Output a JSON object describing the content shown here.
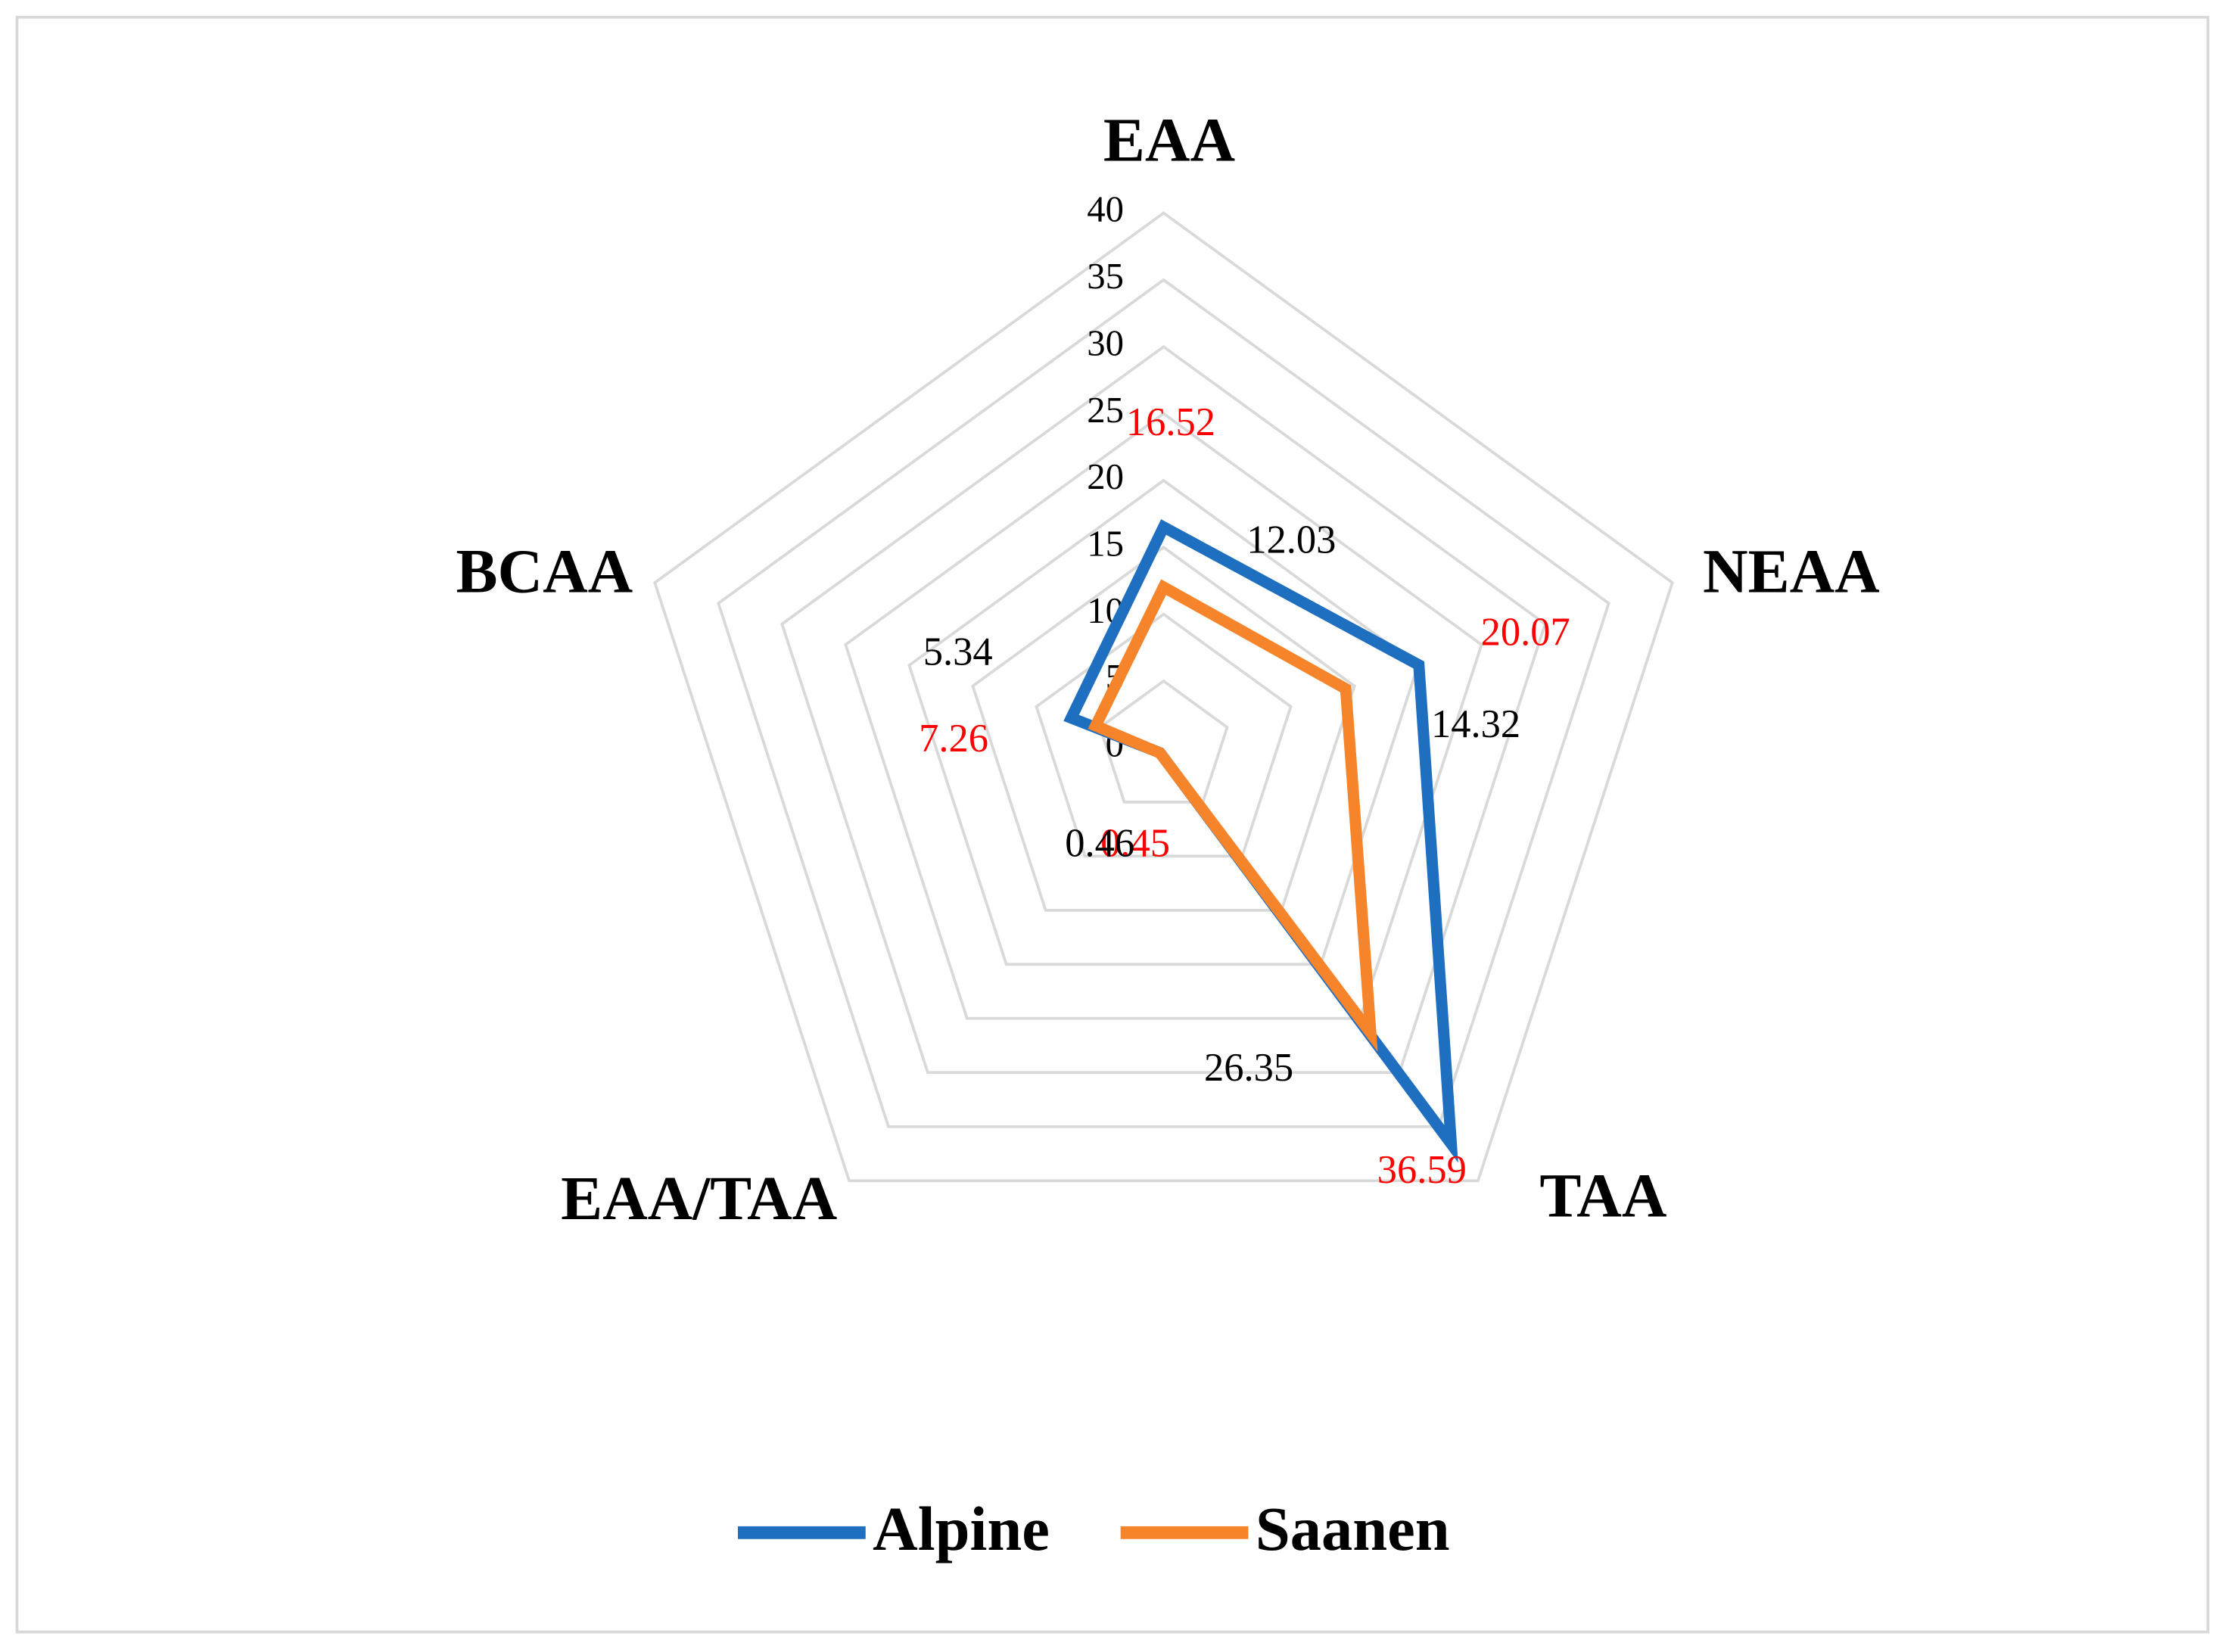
{
  "chart_data": {
    "type": "radar",
    "categories": [
      "EAA",
      "NEAA",
      "TAA",
      "EAA/TAA",
      "BCAA"
    ],
    "series": [
      {
        "name": "Alpine",
        "color": "#1f6fc1",
        "label_color": "#ff0000",
        "values": [
          16.52,
          20.07,
          36.59,
          0.45,
          7.26
        ]
      },
      {
        "name": "Saanen",
        "color": "#f5842a",
        "label_color": "#000000",
        "values": [
          12.03,
          14.32,
          26.35,
          0.46,
          5.34
        ]
      }
    ],
    "rlim": [
      0,
      40
    ],
    "rticks": [
      0,
      5,
      10,
      15,
      20,
      25,
      30,
      35,
      40
    ],
    "grid": true,
    "legend": "bottom"
  }
}
